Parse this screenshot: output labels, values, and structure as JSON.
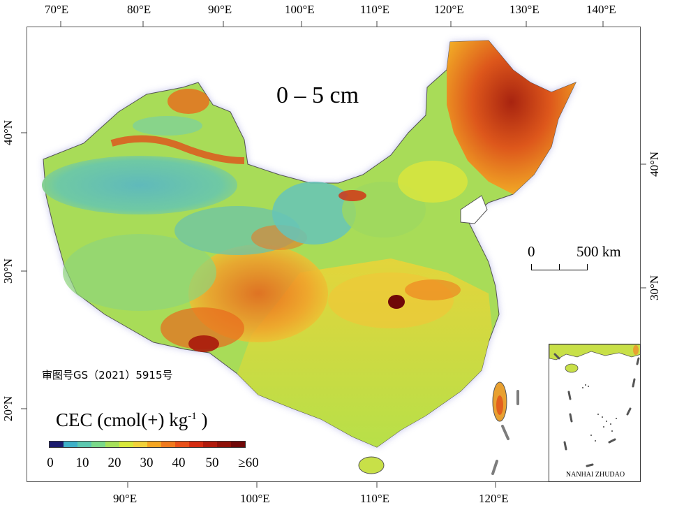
{
  "map": {
    "title": "0 – 5 cm",
    "approval_number": "审图号GS（2021）5915号",
    "top_lon_labels": [
      "70°E",
      "80°E",
      "90°E",
      "100°E",
      "110°E",
      "120°E",
      "130°E",
      "140°E"
    ],
    "bottom_lon_labels": [
      "90°E",
      "100°E",
      "110°E",
      "120°E"
    ],
    "left_lat_labels": [
      "40°N",
      "30°N",
      "20°N"
    ],
    "right_lat_labels": [
      "40°N",
      "30°N"
    ],
    "scale_bar": {
      "start_label": "0",
      "end_label": "500 km"
    },
    "inset_label": "NANHAI ZHUDAO"
  },
  "legend": {
    "title": "CEC (cmol(+) kg",
    "title_exp": "-1",
    "title_end": " )",
    "tick_labels": [
      "0",
      "10",
      "20",
      "30",
      "40",
      "50",
      "≥60"
    ],
    "colors": [
      "#1a1a6e",
      "#3fb0c8",
      "#5cc8b0",
      "#7ad98a",
      "#a6e05a",
      "#d8e83a",
      "#f2d23a",
      "#f5a623",
      "#f07a1e",
      "#e8501a",
      "#d42c12",
      "#b01a0c",
      "#8e1008",
      "#700808"
    ]
  }
}
